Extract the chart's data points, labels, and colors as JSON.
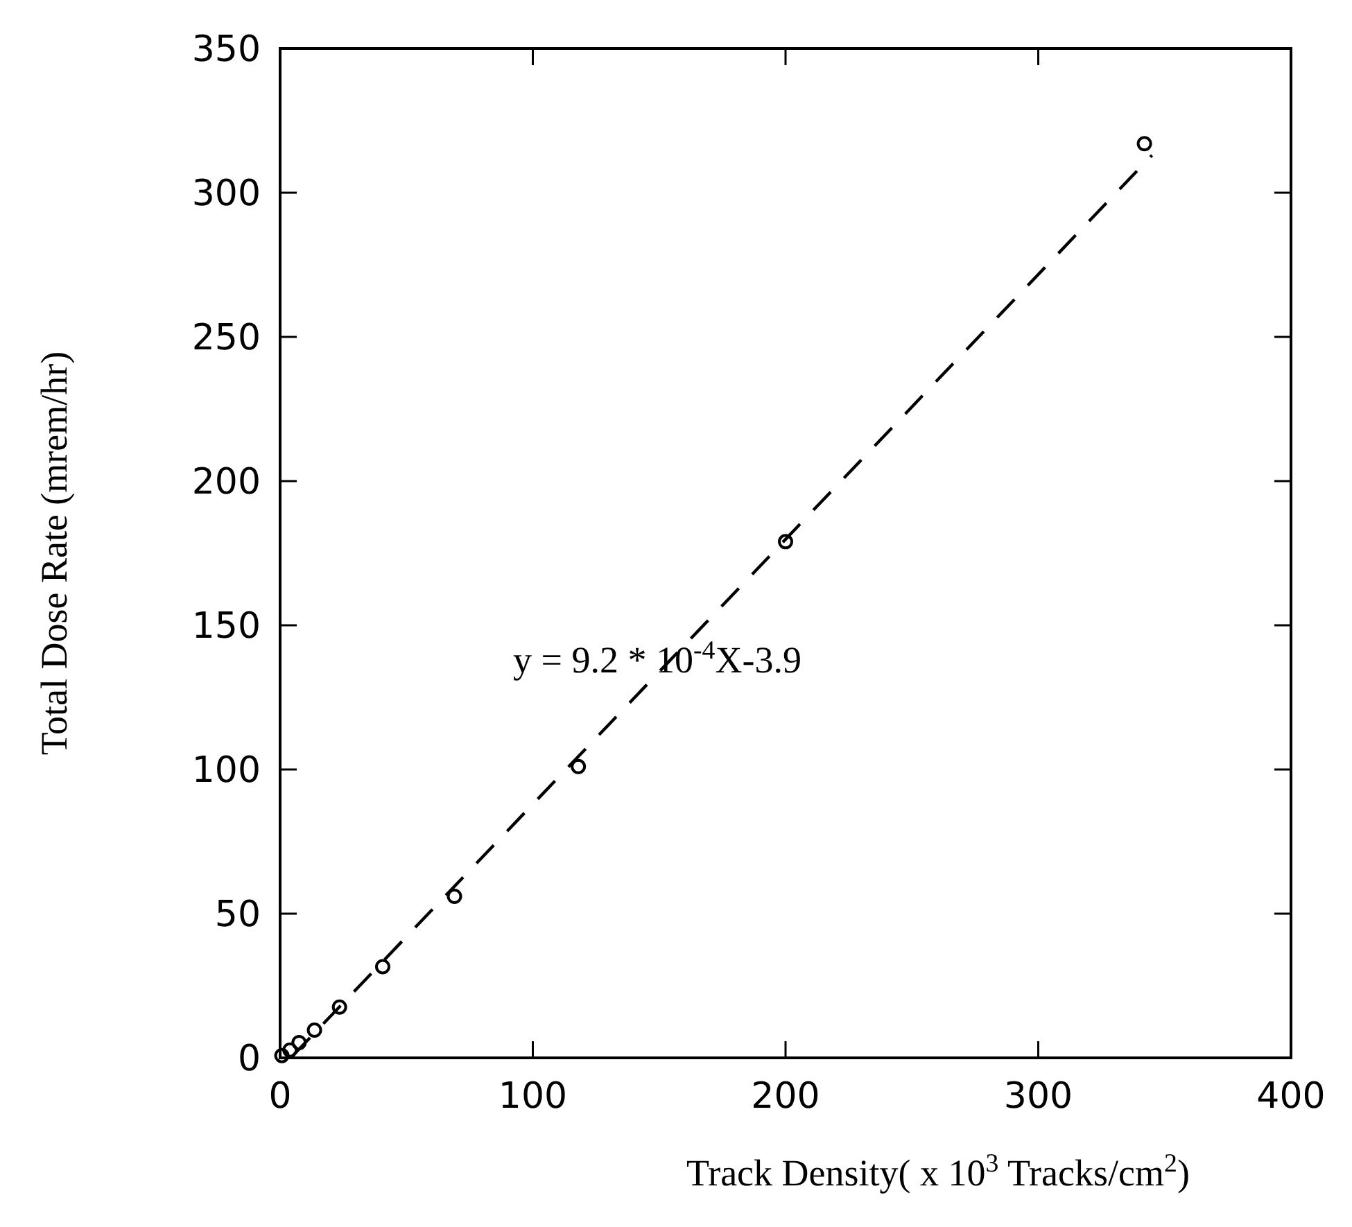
{
  "chart_data": {
    "type": "scatter",
    "xlabel": "Track Density( x 10$^{3}$ Tracks/cm$^{2}$)",
    "ylabel": "Total Dose Rate (mrem/hr)",
    "xlim": [
      0,
      400
    ],
    "ylim": [
      0,
      350
    ],
    "xticks": [
      0,
      100,
      200,
      300,
      400
    ],
    "yticks": [
      0,
      50,
      100,
      150,
      200,
      250,
      300,
      350
    ],
    "grid": false,
    "annotations": [
      "y = 9.2 * 10$^{-4}$X-3.9"
    ],
    "series": [
      {
        "color": "#000000",
        "marker": "circle",
        "x": [
          0.7,
          3.9,
          7.5,
          13.6,
          23.5,
          40.6,
          69,
          118,
          200,
          342
        ],
        "values": [
          0.8,
          2.7,
          5.3,
          9.6,
          17.6,
          31.6,
          56,
          101,
          179,
          317
        ]
      },
      {
        "type": "line",
        "color": "#000000",
        "marker": "none",
        "line_style": "dashed",
        "x": [
          5,
          345
        ],
        "values": [
          0.7,
          313
        ]
      }
    ]
  }
}
